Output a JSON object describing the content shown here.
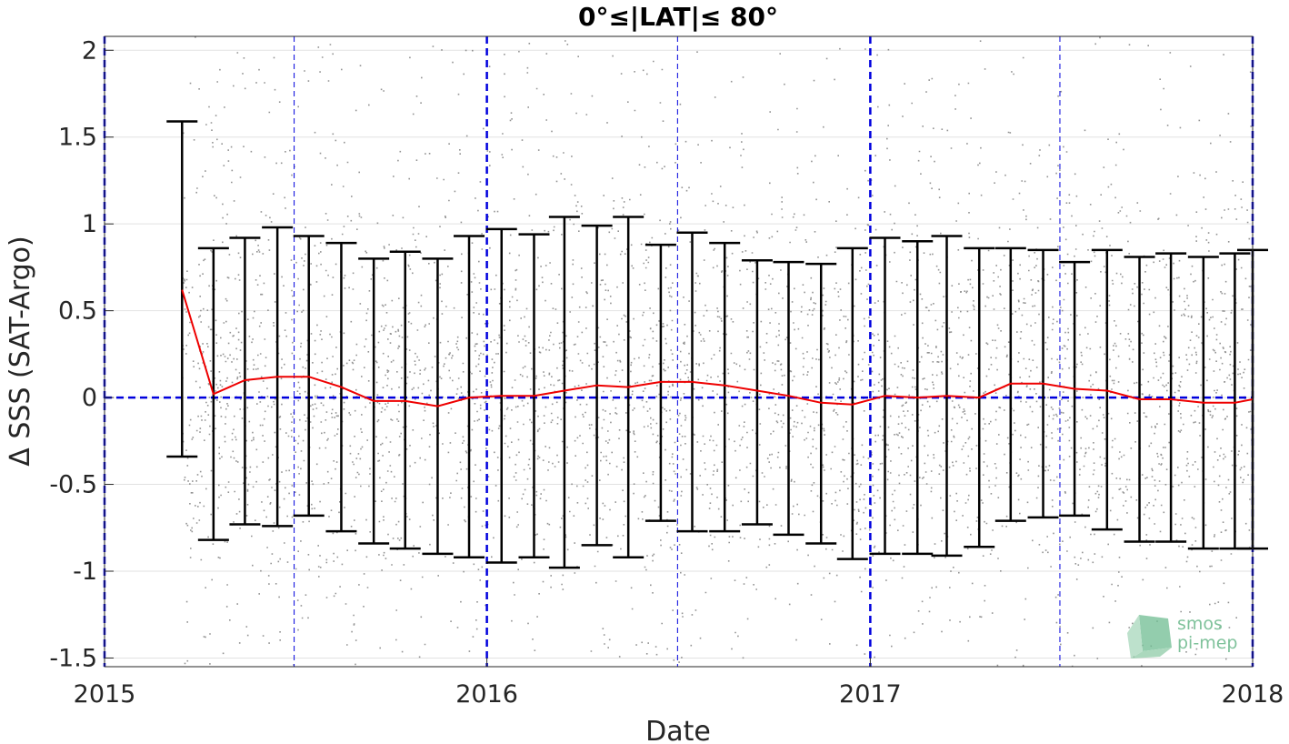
{
  "chart_data": {
    "type": "scatter",
    "title": "0°≤|LAT|≤ 80°",
    "xlabel": "Date",
    "ylabel": "Δ SSS (SAT-Argo)",
    "xlim": [
      "2015-01-01",
      "2018-01-01"
    ],
    "ylim": [
      -1.55,
      2.08
    ],
    "x_ticks": [
      {
        "date": "2015-01-01",
        "label": "2015"
      },
      {
        "date": "2016-01-01",
        "label": "2016"
      },
      {
        "date": "2017-01-01",
        "label": "2017"
      },
      {
        "date": "2018-01-01",
        "label": "2018"
      }
    ],
    "y_ticks": [
      {
        "value": 2,
        "label": "2"
      },
      {
        "value": 1.5,
        "label": "1.5"
      },
      {
        "value": 1,
        "label": "1"
      },
      {
        "value": 0.5,
        "label": "0.5"
      },
      {
        "value": 0,
        "label": "0"
      },
      {
        "value": -0.5,
        "label": "-0.5"
      },
      {
        "value": -1,
        "label": "-1"
      },
      {
        "value": -1.5,
        "label": "-1.5"
      }
    ],
    "grid": true,
    "scatter": {
      "color": "#808080",
      "x_range": [
        "2015-03-15",
        "2018-01-01"
      ],
      "y_distribution": "dense around 0, spread roughly -1.5 to 2"
    },
    "reference_lines": {
      "zero_line": 0,
      "vertical_dates": [
        "2015-01-01",
        "2015-07-01",
        "2016-01-01",
        "2016-07-01",
        "2017-01-01",
        "2017-07-01",
        "2018-01-01"
      ],
      "color": "#0000dd"
    },
    "series": [
      {
        "type": "errorbar-line",
        "color": "#ee0000",
        "errorbar_color": "#000000",
        "points": [
          {
            "x": "2015-03-16",
            "mean": 0.62,
            "low": -0.34,
            "high": 1.59
          },
          {
            "x": "2015-04-15",
            "mean": 0.02,
            "low": -0.82,
            "high": 0.86
          },
          {
            "x": "2015-05-15",
            "mean": 0.1,
            "low": -0.73,
            "high": 0.92
          },
          {
            "x": "2015-06-15",
            "mean": 0.12,
            "low": -0.74,
            "high": 0.98
          },
          {
            "x": "2015-07-15",
            "mean": 0.12,
            "low": -0.68,
            "high": 0.93
          },
          {
            "x": "2015-08-15",
            "mean": 0.06,
            "low": -0.77,
            "high": 0.89
          },
          {
            "x": "2015-09-15",
            "mean": -0.02,
            "low": -0.84,
            "high": 0.8
          },
          {
            "x": "2015-10-15",
            "mean": -0.02,
            "low": -0.87,
            "high": 0.84
          },
          {
            "x": "2015-11-15",
            "mean": -0.05,
            "low": -0.9,
            "high": 0.8
          },
          {
            "x": "2015-12-15",
            "mean": 0.0,
            "low": -0.92,
            "high": 0.93
          },
          {
            "x": "2016-01-15",
            "mean": 0.01,
            "low": -0.95,
            "high": 0.97
          },
          {
            "x": "2016-02-15",
            "mean": 0.01,
            "low": -0.92,
            "high": 0.94
          },
          {
            "x": "2016-03-15",
            "mean": 0.04,
            "low": -0.98,
            "high": 1.04
          },
          {
            "x": "2016-04-15",
            "mean": 0.07,
            "low": -0.85,
            "high": 0.99
          },
          {
            "x": "2016-05-15",
            "mean": 0.06,
            "low": -0.92,
            "high": 1.04
          },
          {
            "x": "2016-06-15",
            "mean": 0.09,
            "low": -0.71,
            "high": 0.88
          },
          {
            "x": "2016-07-15",
            "mean": 0.09,
            "low": -0.77,
            "high": 0.95
          },
          {
            "x": "2016-08-15",
            "mean": 0.07,
            "low": -0.77,
            "high": 0.89
          },
          {
            "x": "2016-09-15",
            "mean": 0.04,
            "low": -0.73,
            "high": 0.79
          },
          {
            "x": "2016-10-15",
            "mean": 0.01,
            "low": -0.79,
            "high": 0.78
          },
          {
            "x": "2016-11-15",
            "mean": -0.03,
            "low": -0.84,
            "high": 0.77
          },
          {
            "x": "2016-12-15",
            "mean": -0.04,
            "low": -0.93,
            "high": 0.86
          },
          {
            "x": "2017-01-15",
            "mean": 0.01,
            "low": -0.9,
            "high": 0.92
          },
          {
            "x": "2017-02-15",
            "mean": 0.0,
            "low": -0.9,
            "high": 0.9
          },
          {
            "x": "2017-03-15",
            "mean": 0.01,
            "low": -0.91,
            "high": 0.93
          },
          {
            "x": "2017-04-15",
            "mean": 0.0,
            "low": -0.86,
            "high": 0.86
          },
          {
            "x": "2017-05-15",
            "mean": 0.08,
            "low": -0.71,
            "high": 0.86
          },
          {
            "x": "2017-06-15",
            "mean": 0.08,
            "low": -0.69,
            "high": 0.85
          },
          {
            "x": "2017-07-15",
            "mean": 0.05,
            "low": -0.68,
            "high": 0.78
          },
          {
            "x": "2017-08-15",
            "mean": 0.04,
            "low": -0.76,
            "high": 0.85
          },
          {
            "x": "2017-09-15",
            "mean": -0.01,
            "low": -0.83,
            "high": 0.81
          },
          {
            "x": "2017-10-15",
            "mean": -0.01,
            "low": -0.83,
            "high": 0.83
          },
          {
            "x": "2017-11-15",
            "mean": -0.03,
            "low": -0.87,
            "high": 0.81
          },
          {
            "x": "2017-12-15",
            "mean": -0.03,
            "low": -0.87,
            "high": 0.83
          },
          {
            "x": "2018-01-01",
            "mean": -0.01,
            "low": -0.87,
            "high": 0.85
          }
        ]
      }
    ]
  },
  "logo": {
    "text_line1": "smos",
    "text_line2": "pi-mep",
    "color": "#7fc29b"
  }
}
